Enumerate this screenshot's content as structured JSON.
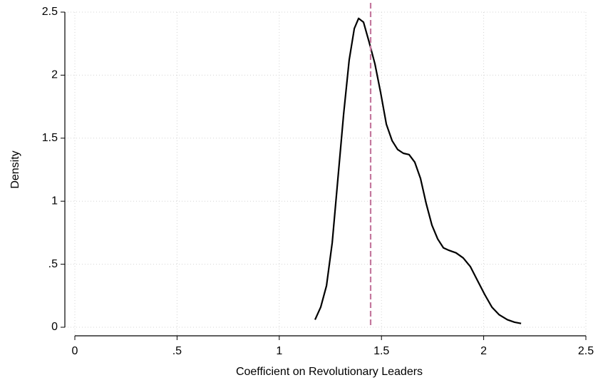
{
  "chart_data": {
    "type": "line",
    "xlabel": "Coefficient on Revolutionary Leaders",
    "ylabel": "Density",
    "series": [
      {
        "color": "#000000",
        "x": [
          1.175,
          1.203,
          1.231,
          1.259,
          1.287,
          1.315,
          1.342,
          1.367,
          1.388,
          1.412,
          1.44,
          1.468,
          1.496,
          1.524,
          1.552,
          1.579,
          1.607,
          1.635,
          1.663,
          1.691,
          1.719,
          1.747,
          1.775,
          1.803,
          1.831,
          1.865,
          1.9,
          1.935,
          1.97,
          2.005,
          2.04,
          2.075,
          2.116,
          2.151,
          2.183
        ],
        "values": [
          0.06,
          0.16,
          0.33,
          0.67,
          1.18,
          1.69,
          2.12,
          2.37,
          2.45,
          2.42,
          2.26,
          2.09,
          1.86,
          1.61,
          1.48,
          1.41,
          1.38,
          1.37,
          1.31,
          1.18,
          0.98,
          0.81,
          0.7,
          0.63,
          0.61,
          0.59,
          0.55,
          0.48,
          0.37,
          0.26,
          0.16,
          0.1,
          0.06,
          0.04,
          0.03
        ]
      }
    ],
    "reference_line": {
      "value": 1.447,
      "color": "#c4789e"
    },
    "xlim": [
      0,
      2.5
    ],
    "xticks": [
      0,
      {
        "value": 0.5,
        "label": ".5"
      },
      1,
      1.5,
      2,
      2.5
    ],
    "ylim": [
      0,
      2.5
    ],
    "yticks": [
      0,
      {
        "value": 0.5,
        "label": ".5"
      },
      1,
      1.5,
      2,
      2.5
    ],
    "grid": true
  }
}
